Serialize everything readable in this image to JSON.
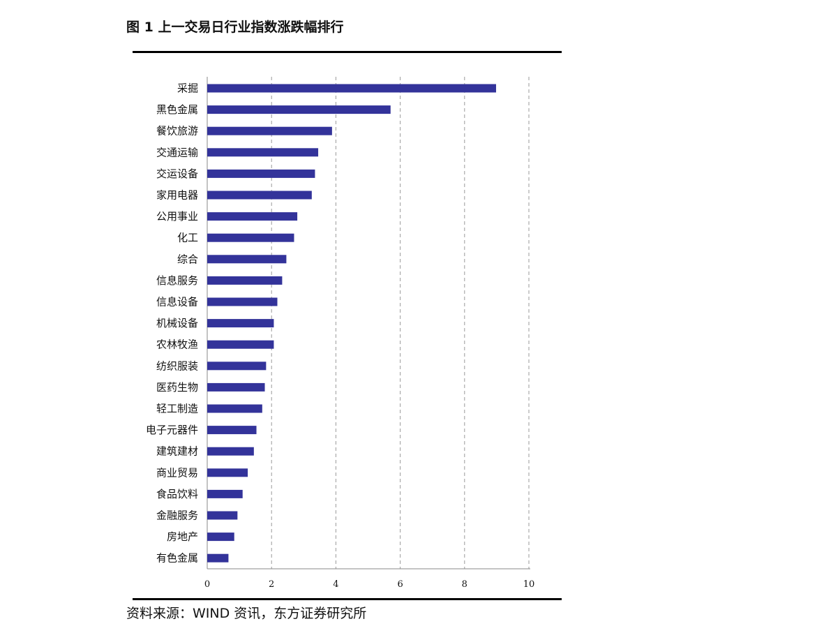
{
  "title": "图 1  上一交易日行业指数涨跌幅排行",
  "source": "资料来源：WIND 资讯，东方证券研究所",
  "chart_data": {
    "type": "bar",
    "orientation": "horizontal",
    "title": "",
    "xlabel": "",
    "ylabel": "",
    "xlim": [
      0,
      10
    ],
    "xticks": [
      0,
      2,
      4,
      6,
      8,
      10
    ],
    "grid": "vertical dashed",
    "bar_color": "#33339a",
    "categories": [
      "采掘",
      "黑色金属",
      "餐饮旅游",
      "交通运输",
      "交运设备",
      "家用电器",
      "公用事业",
      "化工",
      "综合",
      "信息服务",
      "信息设备",
      "机械设备",
      "农林牧渔",
      "纺织服装",
      "医药生物",
      "轻工制造",
      "电子元器件",
      "建筑建材",
      "商业贸易",
      "食品饮料",
      "金融服务",
      "房地产",
      "有色金属"
    ],
    "values": [
      8.98,
      5.7,
      3.88,
      3.45,
      3.35,
      3.25,
      2.8,
      2.7,
      2.46,
      2.33,
      2.18,
      2.07,
      2.07,
      1.83,
      1.79,
      1.71,
      1.53,
      1.45,
      1.26,
      1.1,
      0.94,
      0.84,
      0.66
    ]
  }
}
